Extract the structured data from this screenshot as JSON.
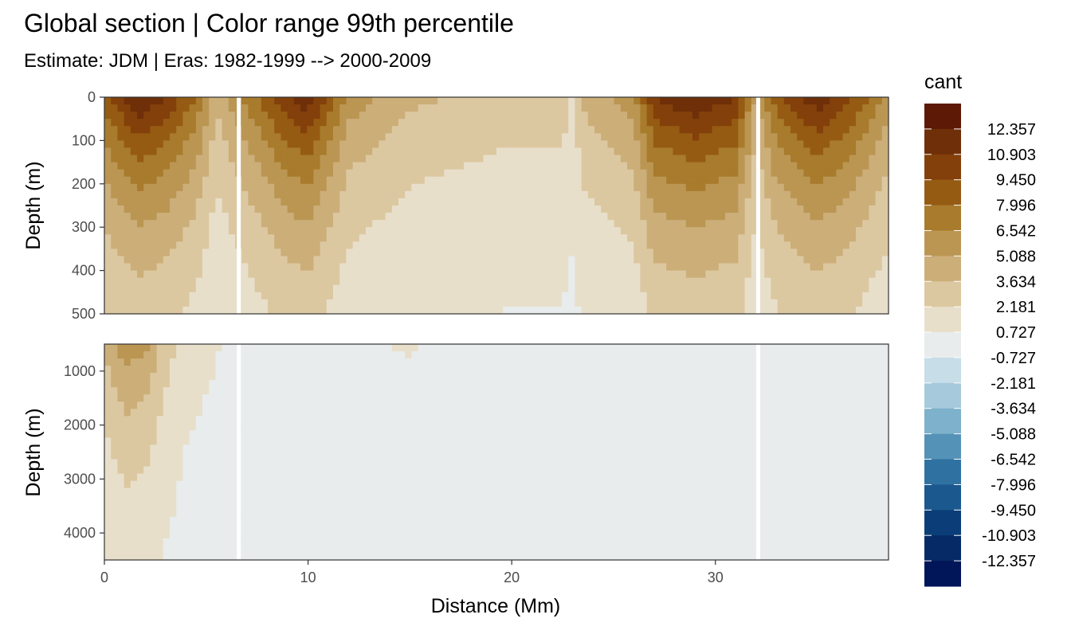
{
  "chart_data": {
    "type": "heatmap",
    "title": "Global section | Color range 99th percentile",
    "subtitle": "Estimate: JDM  | Eras: 1982-1999 --> 2000-2009",
    "xlabel": "Distance (Mm)",
    "ylabel": "Depth (m)",
    "x_range": [
      0,
      38.5
    ],
    "x_ticks": [
      "0",
      "10",
      "20",
      "30"
    ],
    "panels": [
      {
        "name": "upper",
        "y_range": [
          0,
          500
        ],
        "y_ticks": [
          "0",
          "100",
          "200",
          "300",
          "400",
          "500"
        ]
      },
      {
        "name": "lower",
        "y_range": [
          500,
          4500
        ],
        "y_ticks": [
          "1000",
          "2000",
          "3000",
          "4000"
        ]
      }
    ],
    "gaps_x": [
      6.6,
      32.1
    ],
    "legend": {
      "title": "cant",
      "position": "right",
      "labels": [
        "12.357",
        "10.903",
        "9.450",
        "7.996",
        "6.542",
        "5.088",
        "3.634",
        "2.181",
        "0.727",
        "-0.727",
        "-2.181",
        "-3.634",
        "-5.088",
        "-6.542",
        "-7.996",
        "-9.450",
        "-10.903",
        "-12.357"
      ],
      "colors": [
        "#5d1906",
        "#6f2f08",
        "#83400a",
        "#965b13",
        "#a87b2d",
        "#bb9653",
        "#ccae79",
        "#dcc8a0",
        "#e8dfcb",
        "#e8ecec",
        "#c7dde8",
        "#a6c9db",
        "#7eb1cb",
        "#5592b7",
        "#2f72a1",
        "#1a588e",
        "#0b3e78",
        "#052a66",
        "#011559"
      ]
    },
    "surface_profile": {
      "x": [
        0,
        1,
        1.7,
        3,
        4.5,
        5.5,
        7,
        9,
        10,
        12,
        15,
        20,
        22.5,
        23,
        23.5,
        26,
        27,
        29,
        31,
        32,
        33,
        35,
        36.5,
        38.5
      ],
      "y": [
        9,
        11,
        12.4,
        11,
        8,
        4,
        7,
        11,
        12,
        6,
        4,
        3,
        3,
        2,
        4,
        6,
        11,
        12.4,
        11,
        5,
        9,
        12,
        10,
        6
      ]
    },
    "deep_profile": {
      "x": [
        0,
        1,
        2,
        3,
        4,
        6,
        8,
        10,
        12,
        15,
        18,
        20,
        23,
        26,
        28,
        30,
        33,
        35,
        38.5
      ],
      "y": [
        4,
        6,
        5.5,
        3,
        1.5,
        0.6,
        -0.5,
        0.2,
        0.6,
        0.8,
        0.4,
        0.1,
        0.5,
        -0.2,
        0.3,
        0.1,
        -0.3,
        0.4,
        0.6
      ]
    }
  }
}
